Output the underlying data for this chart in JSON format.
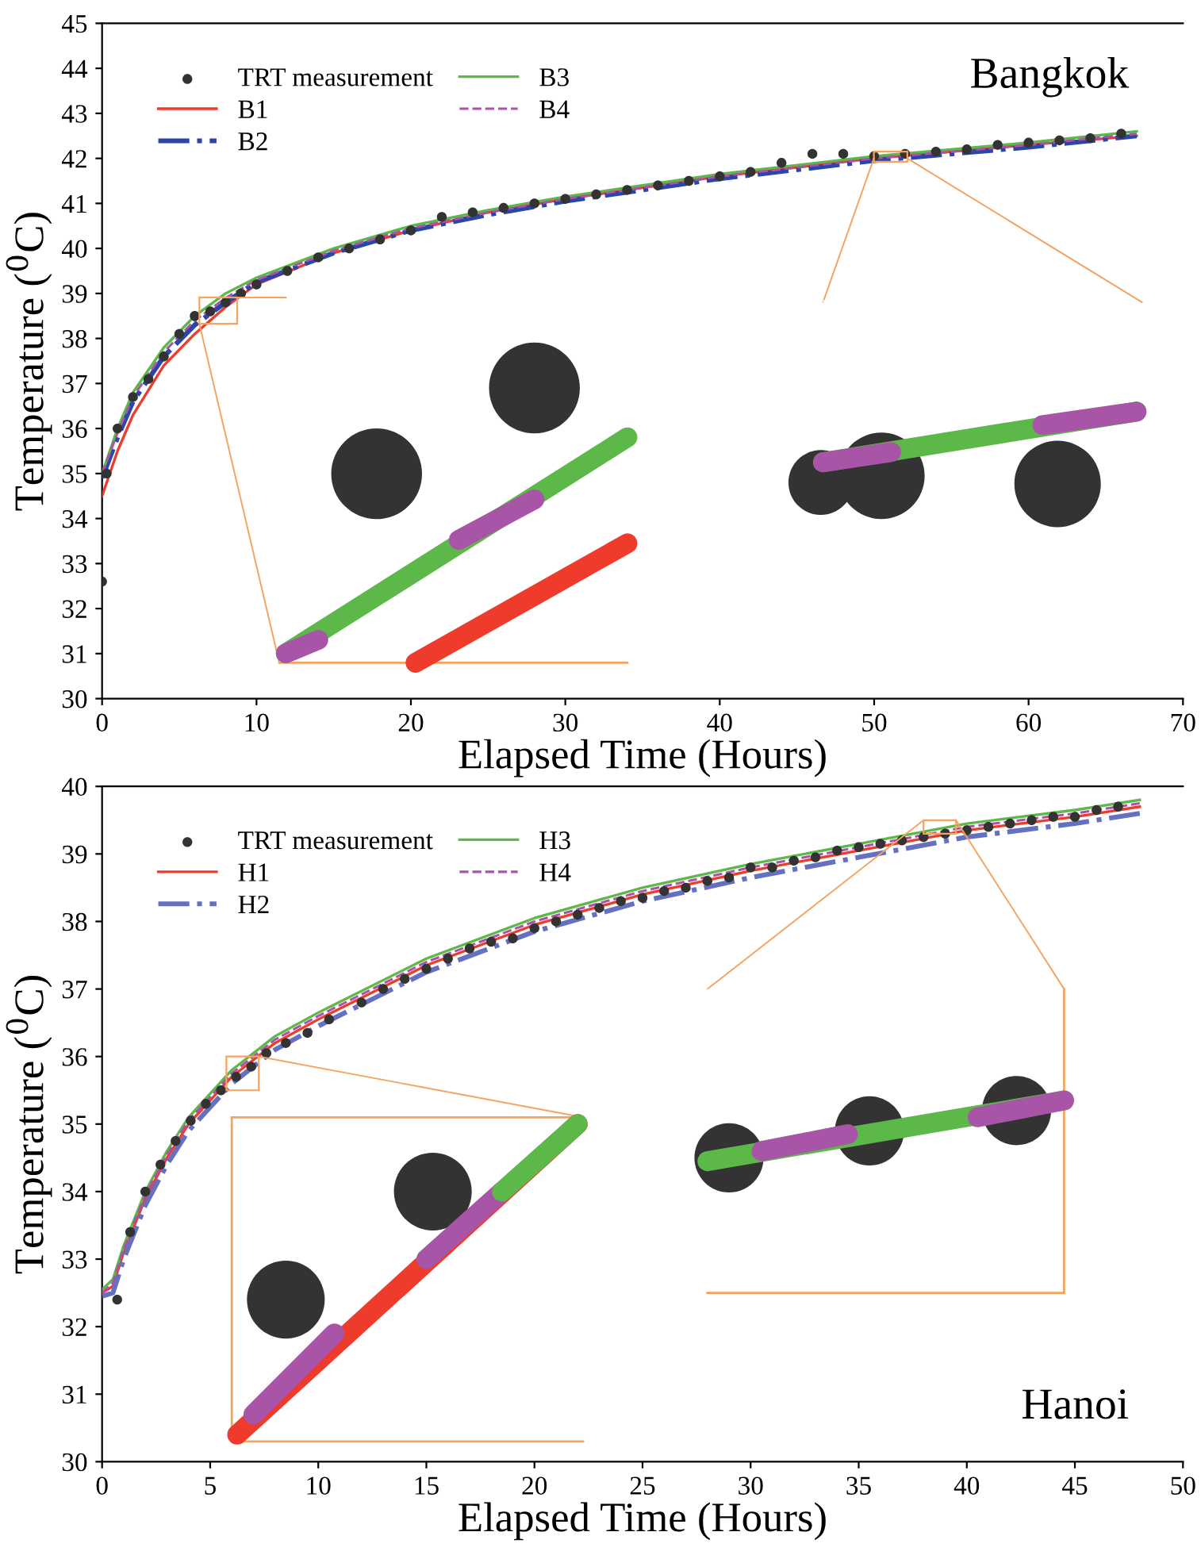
{
  "chart_data": [
    {
      "type": "line",
      "title": "Bangkok",
      "xlabel": "Elapsed Time (Hours)",
      "ylabel": "Temperature ($^{0}$C)",
      "xlim": [
        0,
        70
      ],
      "xticks": [
        0,
        10,
        20,
        30,
        40,
        50,
        60,
        70
      ],
      "ylim": [
        30,
        45
      ],
      "yticks": [
        30,
        31,
        32,
        33,
        34,
        35,
        36,
        37,
        38,
        39,
        40,
        41,
        42,
        43,
        44,
        45
      ],
      "grid": false,
      "legend": "top left",
      "series": [
        {
          "name": "TRT measurement",
          "type": "scatter",
          "marker": "circle",
          "color": "#333333",
          "x": [
            0,
            0.3,
            1,
            2,
            3,
            4,
            5,
            6,
            7,
            8,
            9,
            10,
            12,
            14,
            16,
            18,
            20,
            22,
            24,
            26,
            28,
            30,
            32,
            34,
            36,
            38,
            40,
            42,
            44,
            46,
            48,
            50,
            52,
            54,
            56,
            58,
            60,
            62,
            64,
            66
          ],
          "values": [
            32.6,
            35.0,
            36.0,
            36.7,
            37.1,
            37.6,
            38.1,
            38.5,
            38.6,
            38.8,
            39.0,
            39.2,
            39.5,
            39.8,
            40.0,
            40.2,
            40.4,
            40.7,
            40.8,
            40.9,
            41.0,
            41.1,
            41.2,
            41.3,
            41.4,
            41.5,
            41.6,
            41.7,
            41.9,
            42.1,
            42.1,
            42.05,
            42.1,
            42.15,
            42.2,
            42.3,
            42.35,
            42.4,
            42.45,
            42.55
          ]
        },
        {
          "name": "B1",
          "line_style": "solid",
          "color": "#ee3b2b",
          "x": [
            0,
            1,
            2,
            4,
            6,
            8,
            10,
            15,
            20,
            25,
            30,
            40,
            50,
            60,
            67
          ],
          "values": [
            34.5,
            35.5,
            36.3,
            37.4,
            38.1,
            38.7,
            39.2,
            39.9,
            40.4,
            40.8,
            41.1,
            41.6,
            42.0,
            42.3,
            42.5
          ]
        },
        {
          "name": "B2",
          "line_style": "dashdot",
          "color": "#2b45a8",
          "x": [
            0,
            1,
            2,
            4,
            6,
            8,
            10,
            15,
            20,
            25,
            30,
            40,
            50,
            60,
            67
          ],
          "values": [
            34.9,
            35.8,
            36.6,
            37.6,
            38.3,
            38.8,
            39.25,
            39.9,
            40.4,
            40.75,
            41.05,
            41.55,
            41.95,
            42.25,
            42.5
          ]
        },
        {
          "name": "B3",
          "line_style": "solid",
          "color": "#5cb848",
          "x": [
            0,
            1,
            2,
            4,
            6,
            8,
            10,
            15,
            20,
            25,
            30,
            40,
            50,
            60,
            67
          ],
          "values": [
            35.0,
            36.0,
            36.8,
            37.8,
            38.5,
            39.0,
            39.35,
            40.0,
            40.5,
            40.85,
            41.15,
            41.65,
            42.05,
            42.35,
            42.6
          ]
        },
        {
          "name": "B4",
          "line_style": "dashed",
          "color": "#a855a8",
          "x": [
            0,
            1,
            2,
            4,
            6,
            8,
            10,
            15,
            20,
            25,
            30,
            40,
            50,
            60,
            67
          ],
          "values": [
            35.0,
            35.9,
            36.7,
            37.7,
            38.4,
            38.9,
            39.3,
            39.95,
            40.45,
            40.8,
            41.1,
            41.6,
            42.0,
            42.3,
            42.55
          ]
        }
      ]
    },
    {
      "type": "line",
      "title": "Hanoi",
      "xlabel": "Elapsed Time (Hours)",
      "ylabel": "Temperature ($^{0}$C)",
      "xlim": [
        0,
        50
      ],
      "xticks": [
        0,
        5,
        10,
        15,
        20,
        25,
        30,
        35,
        40,
        45,
        50
      ],
      "ylim": [
        30,
        40
      ],
      "yticks": [
        30,
        31,
        32,
        33,
        34,
        35,
        36,
        37,
        38,
        39,
        40
      ],
      "grid": false,
      "legend": "top left",
      "series": [
        {
          "name": "TRT measurement",
          "type": "scatter",
          "marker": "circle",
          "color": "#333333",
          "x": [
            0.7,
            1.3,
            2,
            2.7,
            3.4,
            4.1,
            4.8,
            5.5,
            6.2,
            6.9,
            7.6,
            8.5,
            9.5,
            10.5,
            12,
            13,
            14,
            15,
            16,
            17,
            18,
            19,
            20,
            21,
            22,
            23,
            24,
            25,
            26,
            27,
            28,
            29,
            30,
            31,
            32,
            33,
            34,
            35,
            36,
            37,
            38,
            39,
            40,
            41,
            42,
            43,
            44,
            45,
            46,
            47
          ],
          "values": [
            32.4,
            33.4,
            34.0,
            34.4,
            34.75,
            35.05,
            35.3,
            35.5,
            35.7,
            35.85,
            36.05,
            36.2,
            36.35,
            36.55,
            36.8,
            37.0,
            37.15,
            37.3,
            37.45,
            37.6,
            37.7,
            37.75,
            37.9,
            38.0,
            38.1,
            38.2,
            38.3,
            38.35,
            38.45,
            38.5,
            38.6,
            38.65,
            38.8,
            38.8,
            38.9,
            38.95,
            39.05,
            39.1,
            39.15,
            39.2,
            39.25,
            39.3,
            39.35,
            39.4,
            39.45,
            39.5,
            39.55,
            39.55,
            39.65,
            39.7
          ]
        },
        {
          "name": "H1",
          "line_style": "solid",
          "color": "#ee3b2b",
          "x": [
            0,
            0.5,
            1,
            2,
            3,
            4,
            6,
            8,
            10,
            15,
            20,
            25,
            30,
            35,
            40,
            45,
            48
          ],
          "values": [
            32.5,
            32.6,
            33.1,
            33.9,
            34.5,
            35.0,
            35.7,
            36.2,
            36.55,
            37.35,
            37.95,
            38.4,
            38.75,
            39.05,
            39.35,
            39.55,
            39.7
          ]
        },
        {
          "name": "H2",
          "line_style": "dashdot",
          "color": "#6670c0",
          "x": [
            0,
            0.5,
            1,
            2,
            3,
            4,
            6,
            8,
            10,
            15,
            20,
            25,
            30,
            35,
            40,
            45,
            48
          ],
          "values": [
            32.45,
            32.5,
            33.0,
            33.8,
            34.4,
            34.9,
            35.6,
            36.1,
            36.45,
            37.25,
            37.85,
            38.3,
            38.65,
            38.95,
            39.25,
            39.45,
            39.6
          ]
        },
        {
          "name": "H3",
          "line_style": "solid",
          "color": "#5cb848",
          "x": [
            0,
            0.5,
            1,
            2,
            3,
            4,
            6,
            8,
            10,
            15,
            20,
            25,
            30,
            35,
            40,
            45,
            48
          ],
          "values": [
            32.55,
            32.7,
            33.2,
            34.0,
            34.6,
            35.1,
            35.8,
            36.3,
            36.65,
            37.45,
            38.05,
            38.5,
            38.85,
            39.15,
            39.45,
            39.65,
            39.8
          ]
        },
        {
          "name": "H4",
          "line_style": "dashed",
          "color": "#a855a8",
          "x": [
            0,
            0.5,
            1,
            2,
            3,
            4,
            6,
            8,
            10,
            15,
            20,
            25,
            30,
            35,
            40,
            45,
            48
          ],
          "values": [
            32.5,
            32.65,
            33.15,
            33.95,
            34.55,
            35.05,
            35.75,
            36.25,
            36.6,
            37.4,
            38.0,
            38.45,
            38.8,
            39.1,
            39.4,
            39.6,
            39.75
          ]
        }
      ]
    }
  ]
}
